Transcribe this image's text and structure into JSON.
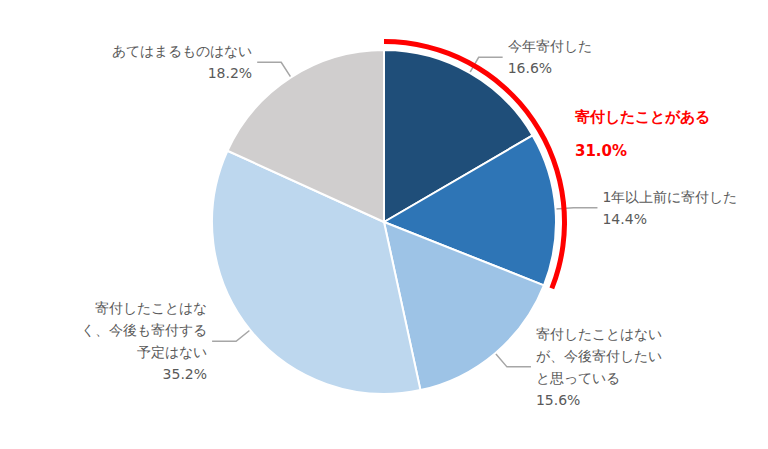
{
  "chart_data": {
    "type": "pie",
    "categories": [
      "今年寄付した",
      "1年以上前に寄付した",
      "寄付したことはない\nが、今後寄付したい\nと思っている",
      "寄付したことはな\nく、今後も寄付する\n予定はない",
      "あてはまるものはない"
    ],
    "values": [
      16.6,
      14.4,
      15.6,
      35.2,
      18.2
    ],
    "value_labels": [
      "16.6%",
      "14.4%",
      "15.6%",
      "35.2%",
      "18.2%"
    ],
    "colors": [
      "#1f4e79",
      "#2e75b6",
      "#9dc3e6",
      "#bdd7ee",
      "#d0cece"
    ],
    "data_labels": true,
    "annotation": {
      "text": "寄付したことがある",
      "value": 31.0,
      "value_label": "31.0%",
      "color": "#ff0000"
    }
  }
}
